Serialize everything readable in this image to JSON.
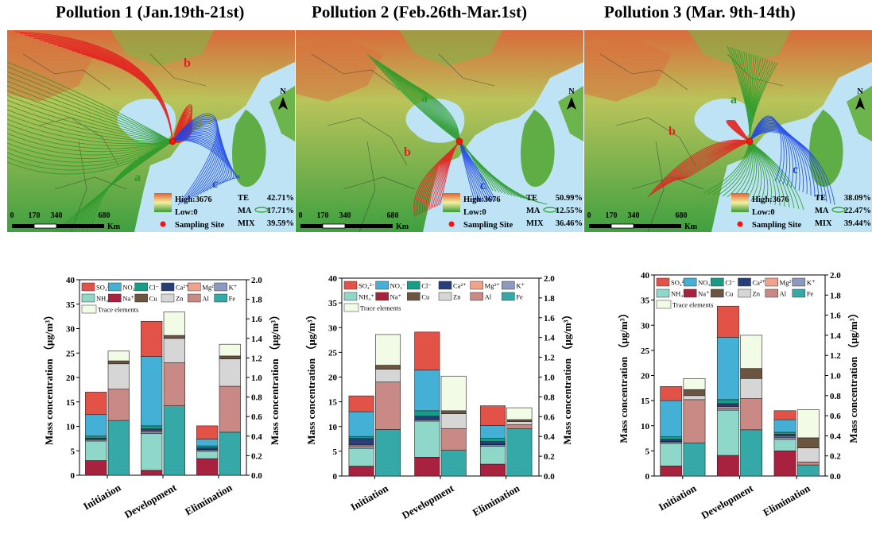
{
  "titles": [
    "Pollution 1 (Jan.19th-21st)",
    "Pollution 2 (Feb.26th-Mar.1st)",
    "Pollution 3 (Mar. 9th-14th)"
  ],
  "map_legend": {
    "high": "High:3676",
    "low": "Low:0",
    "site": "Sampling Site",
    "scale_ticks": [
      "0",
      "170",
      "340",
      "680"
    ],
    "scale_unit": "Km",
    "north": "N"
  },
  "maps": [
    {
      "clusters": [
        {
          "name": "TE",
          "value": "42.71%"
        },
        {
          "name": "MA",
          "value": "17.71%"
        },
        {
          "name": "MIX",
          "value": "39.59%"
        }
      ],
      "route_labels": [
        "a",
        "b",
        "c"
      ]
    },
    {
      "clusters": [
        {
          "name": "TE",
          "value": "50.99%"
        },
        {
          "name": "MA",
          "value": "12.55%"
        },
        {
          "name": "MIX",
          "value": "36.46%"
        }
      ],
      "route_labels": [
        "a",
        "b",
        "c"
      ]
    },
    {
      "clusters": [
        {
          "name": "TE",
          "value": "38.09%"
        },
        {
          "name": "MA",
          "value": "22.47%"
        },
        {
          "name": "MIX",
          "value": "39.44%"
        }
      ],
      "route_labels": [
        "a",
        "b",
        "c"
      ]
    }
  ],
  "colors": {
    "SO4": "#e35247",
    "NO3": "#45b0d6",
    "Cl": "#169d86",
    "Ca": "#283e78",
    "Mg": "#f1a28a",
    "K": "#8d9ac0",
    "NH4": "#8fd8c9",
    "Na": "#a8213e",
    "Cu": "#6b5440",
    "Zn": "#d6d6d6",
    "Al": "#c98a86",
    "Fe": "#35a8a8",
    "Trace": "#f2fbe6",
    "route_a": "#2a9a2a",
    "route_b": "#e52020",
    "route_c": "#1e46e6"
  },
  "chart_data": [
    {
      "type": "bar",
      "stacked": true,
      "categories": [
        "Initiation",
        "Development",
        "Elimination"
      ],
      "ylabel": "Mass concentration （μg/m³）",
      "y2label": "Mass concentration （μg/m³）",
      "ylim": [
        0,
        40
      ],
      "y2lim": [
        0,
        2.0
      ],
      "yticks": [
        "0",
        "5",
        "10",
        "15",
        "20",
        "25",
        "30",
        "35",
        "40"
      ],
      "y2ticks": [
        "0.0",
        "0.2",
        "0.4",
        "0.6",
        "0.8",
        "1.0",
        "1.2",
        "1.4",
        "1.6",
        "1.8",
        "2.0"
      ],
      "legend": [
        "SO₄²⁻",
        "NO₃⁻",
        "Cl⁻",
        "Ca²⁺",
        "Mg²⁺",
        "K⁺",
        "NH₄⁺",
        "Na⁺",
        "Cu",
        "Zn",
        "Al",
        "Fe",
        "Trace elements"
      ],
      "left_series": [
        {
          "key": "Na",
          "values": [
            3.0,
            1.0,
            3.4
          ]
        },
        {
          "key": "NH4",
          "values": [
            4.0,
            7.5,
            1.5
          ]
        },
        {
          "key": "K",
          "values": [
            0.3,
            0.4,
            0.3
          ]
        },
        {
          "key": "Mg",
          "values": [
            0.1,
            0.2,
            0.1
          ]
        },
        {
          "key": "Ca",
          "values": [
            0.2,
            0.4,
            0.3
          ]
        },
        {
          "key": "Cl",
          "values": [
            0.4,
            0.6,
            0.4
          ]
        },
        {
          "key": "NO3",
          "values": [
            4.4,
            14.2,
            1.4
          ]
        },
        {
          "key": "SO4",
          "values": [
            4.6,
            7.2,
            2.7
          ]
        }
      ],
      "right_series": [
        {
          "key": "Fe",
          "values": [
            0.56,
            0.71,
            0.44
          ]
        },
        {
          "key": "Al",
          "values": [
            0.32,
            0.44,
            0.47
          ]
        },
        {
          "key": "Zn",
          "values": [
            0.26,
            0.25,
            0.28
          ]
        },
        {
          "key": "Cu",
          "values": [
            0.03,
            0.03,
            0.03
          ]
        },
        {
          "key": "Trace",
          "values": [
            0.1,
            0.24,
            0.12
          ]
        }
      ]
    },
    {
      "type": "bar",
      "stacked": true,
      "categories": [
        "Initiation",
        "Development",
        "Elimination"
      ],
      "ylabel": "Mass concentration （μg/m³）",
      "y2label": "Mass concentration （μg/m³）",
      "ylim": [
        0,
        40
      ],
      "y2lim": [
        0,
        2.0
      ],
      "yticks": [
        "0",
        "5",
        "10",
        "15",
        "20",
        "25",
        "30",
        "35",
        "40"
      ],
      "y2ticks": [
        "0.0",
        "0.2",
        "0.4",
        "0.6",
        "0.8",
        "1.0",
        "1.2",
        "1.4",
        "1.6",
        "1.8",
        "2.0"
      ],
      "legend": [
        "SO₄²⁻",
        "NO₃⁻",
        "Cl⁻",
        "Ca²⁺",
        "Mg²⁺",
        "K⁺",
        "NH₄⁺",
        "Na⁺",
        "Cu",
        "Zn",
        "Al",
        "Fe",
        "Trace elements"
      ],
      "left_series": [
        {
          "key": "Na",
          "values": [
            2.0,
            3.8,
            2.4
          ]
        },
        {
          "key": "NH4",
          "values": [
            3.6,
            7.3,
            3.6
          ]
        },
        {
          "key": "K",
          "values": [
            0.5,
            0.3,
            0.3
          ]
        },
        {
          "key": "Mg",
          "values": [
            0.2,
            0.1,
            0.1
          ]
        },
        {
          "key": "Ca",
          "values": [
            1.3,
            0.6,
            0.6
          ]
        },
        {
          "key": "Cl",
          "values": [
            0.4,
            1.1,
            0.6
          ]
        },
        {
          "key": "NO3",
          "values": [
            5.0,
            8.2,
            2.6
          ]
        },
        {
          "key": "SO4",
          "values": [
            3.2,
            7.7,
            4.0
          ]
        }
      ],
      "right_series": [
        {
          "key": "Fe",
          "values": [
            0.47,
            0.26,
            0.48
          ]
        },
        {
          "key": "Al",
          "values": [
            0.48,
            0.22,
            0.04
          ]
        },
        {
          "key": "Zn",
          "values": [
            0.13,
            0.15,
            0.03
          ]
        },
        {
          "key": "Cu",
          "values": [
            0.04,
            0.03,
            0.02
          ]
        },
        {
          "key": "Trace",
          "values": [
            0.31,
            0.35,
            0.12
          ]
        }
      ]
    },
    {
      "type": "bar",
      "stacked": true,
      "categories": [
        "Initiation",
        "Development",
        "Elimination"
      ],
      "ylabel": "Mass concentration （μg/m³）",
      "y2label": "Mass concentration （μg/m³）",
      "ylim": [
        0,
        40
      ],
      "y2lim": [
        0,
        2.0
      ],
      "yticks": [
        "0",
        "5",
        "10",
        "15",
        "20",
        "25",
        "30",
        "35",
        "40"
      ],
      "y2ticks": [
        "0.0",
        "0.2",
        "0.4",
        "0.6",
        "0.8",
        "1.0",
        "1.2",
        "1.4",
        "1.6",
        "1.8",
        "2.0"
      ],
      "legend": [
        "SO₄²⁻",
        "NO₃⁻",
        "Cl⁻",
        "Ca²⁺",
        "Mg²⁺",
        "K⁺",
        "NH₄⁺",
        "Na⁺",
        "Cu",
        "Zn",
        "Al",
        "Fe",
        "Trace elements"
      ],
      "left_series": [
        {
          "key": "Na",
          "values": [
            2.0,
            4.1,
            5.0
          ]
        },
        {
          "key": "NH4",
          "values": [
            4.5,
            9.0,
            2.3
          ]
        },
        {
          "key": "K",
          "values": [
            0.3,
            0.4,
            0.4
          ]
        },
        {
          "key": "Mg",
          "values": [
            0.1,
            0.3,
            0.2
          ]
        },
        {
          "key": "Ca",
          "values": [
            0.4,
            0.6,
            0.4
          ]
        },
        {
          "key": "Cl",
          "values": [
            0.5,
            0.8,
            0.4
          ]
        },
        {
          "key": "NO3",
          "values": [
            7.2,
            12.4,
            2.5
          ]
        },
        {
          "key": "SO4",
          "values": [
            2.8,
            6.2,
            1.8
          ]
        }
      ],
      "right_series": [
        {
          "key": "Fe",
          "values": [
            0.33,
            0.46,
            0.11
          ]
        },
        {
          "key": "Al",
          "values": [
            0.43,
            0.31,
            0.03
          ]
        },
        {
          "key": "Zn",
          "values": [
            0.04,
            0.2,
            0.14
          ]
        },
        {
          "key": "Cu",
          "values": [
            0.06,
            0.1,
            0.1
          ]
        },
        {
          "key": "Trace",
          "values": [
            0.11,
            0.33,
            0.28
          ]
        }
      ]
    }
  ]
}
